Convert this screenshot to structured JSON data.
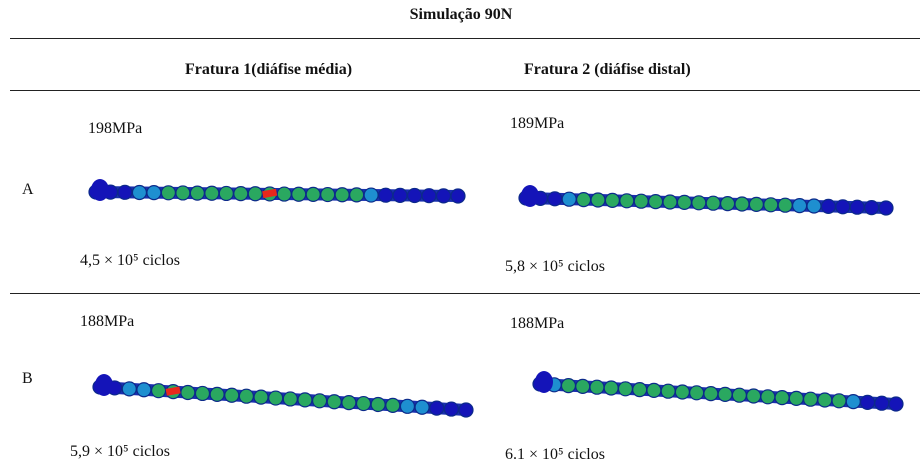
{
  "title": "Simulação 90N",
  "columns": [
    "Fratura 1(diáfise média)",
    "Fratura 2 (diáfise distal)"
  ],
  "rows": [
    {
      "label": "A",
      "cells": [
        {
          "stress": "198MPa",
          "cycles": "4,5 × 10⁵ ciclos"
        },
        {
          "stress": "189MPa",
          "cycles": "5,8 × 10⁵ ciclos"
        }
      ]
    },
    {
      "label": "B",
      "cells": [
        {
          "stress": "188MPa",
          "cycles": "5,9 × 10⁵ ciclos"
        },
        {
          "stress": "188MPa",
          "cycles": "6.1 × 10⁵ ciclos"
        }
      ]
    }
  ]
}
